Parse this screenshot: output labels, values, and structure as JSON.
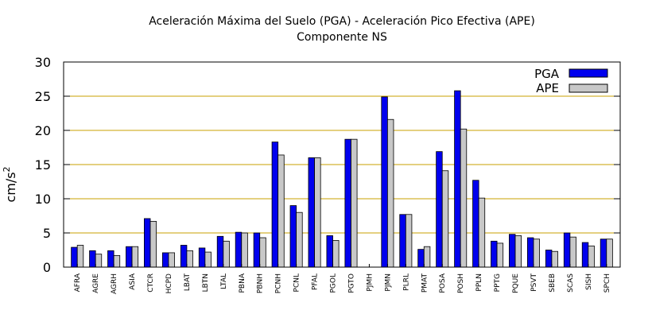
{
  "chart_data": {
    "type": "bar",
    "title": "Aceleración Máxima del Suelo (PGA) -  Aceleración Pico Efectiva (APE)",
    "subtitle": "Componente NS",
    "ylabel_base": "cm/s",
    "ylabel_exp": "2",
    "ylim": [
      0,
      30
    ],
    "yticks": [
      "0",
      "5",
      "10",
      "15",
      "20",
      "25",
      "30"
    ],
    "grid": true,
    "legend_position": "top-right",
    "categories": [
      "AFRA",
      "AGRE",
      "AGRH",
      "ASIA",
      "CTCR",
      "HCPD",
      "LBAT",
      "LBTN",
      "LTAL",
      "PBNA",
      "PBNH",
      "PCNH",
      "PCNL",
      "PFAL",
      "PGOL",
      "PGTO",
      "PJMH",
      "PJMN",
      "PLRL",
      "PMAT",
      "POSA",
      "POSH",
      "PPLN",
      "PPTG",
      "PQUE",
      "PSVT",
      "SBEB",
      "SCAS",
      "SISH",
      "SPCH"
    ],
    "series": [
      {
        "name": "PGA",
        "color": "#0000ee",
        "values": [
          2.9,
          2.4,
          2.4,
          3.0,
          7.1,
          2.1,
          3.2,
          2.8,
          4.5,
          5.1,
          5.0,
          18.3,
          9.0,
          16.0,
          4.6,
          18.7,
          0,
          24.9,
          7.7,
          2.6,
          16.9,
          25.8,
          12.7,
          3.8,
          4.8,
          4.3,
          2.5,
          5.0,
          3.6,
          4.1
        ]
      },
      {
        "name": "APE",
        "color": "#c8c8c8",
        "values": [
          3.2,
          1.9,
          1.7,
          3.0,
          6.7,
          2.1,
          2.4,
          2.2,
          3.8,
          5.0,
          4.3,
          16.4,
          8.0,
          16.0,
          3.9,
          18.7,
          0,
          21.6,
          7.7,
          3.0,
          14.1,
          20.2,
          10.1,
          3.5,
          4.6,
          4.1,
          2.3,
          4.4,
          3.1,
          4.1
        ]
      }
    ]
  }
}
